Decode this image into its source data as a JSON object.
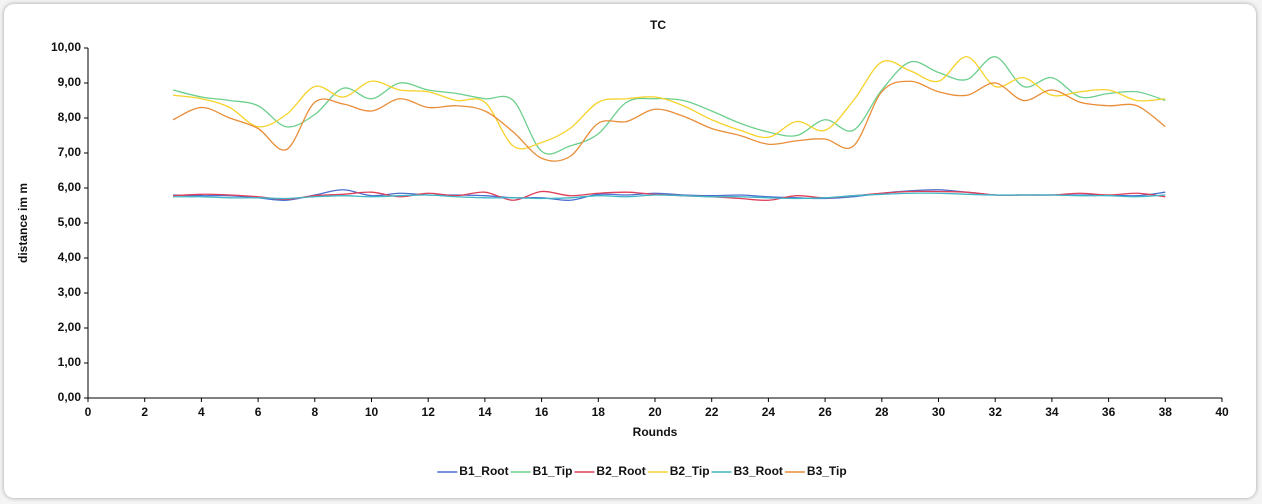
{
  "chart_data": {
    "type": "line",
    "title": "TC",
    "x_label": "Rounds",
    "y_label": "distance im m",
    "x": [
      3,
      4,
      5,
      6,
      7,
      8,
      9,
      10,
      11,
      12,
      13,
      14,
      15,
      16,
      17,
      18,
      19,
      20,
      21,
      22,
      23,
      24,
      25,
      26,
      27,
      28,
      29,
      30,
      31,
      32,
      33,
      34,
      35,
      36,
      37,
      38
    ],
    "series": [
      {
        "name": "B1_Root",
        "color": "#4a6fd0",
        "values": [
          5.8,
          5.78,
          5.78,
          5.72,
          5.65,
          5.8,
          5.95,
          5.78,
          5.85,
          5.8,
          5.8,
          5.78,
          5.72,
          5.72,
          5.65,
          5.82,
          5.8,
          5.85,
          5.8,
          5.78,
          5.8,
          5.75,
          5.72,
          5.7,
          5.75,
          5.85,
          5.92,
          5.95,
          5.88,
          5.8,
          5.8,
          5.8,
          5.8,
          5.8,
          5.78,
          5.88
        ]
      },
      {
        "name": "B1_Tip",
        "color": "#6ccf8c",
        "values": [
          8.8,
          8.6,
          8.5,
          8.35,
          7.75,
          8.1,
          8.85,
          8.55,
          9.0,
          8.8,
          8.7,
          8.55,
          8.5,
          7.05,
          7.2,
          7.55,
          8.45,
          8.55,
          8.5,
          8.2,
          7.85,
          7.6,
          7.5,
          7.95,
          7.65,
          8.8,
          9.6,
          9.3,
          9.1,
          9.75,
          8.9,
          9.15,
          8.6,
          8.7,
          8.75,
          8.5
        ]
      },
      {
        "name": "B2_Root",
        "color": "#e0405a",
        "values": [
          5.78,
          5.82,
          5.8,
          5.75,
          5.68,
          5.78,
          5.82,
          5.88,
          5.75,
          5.85,
          5.78,
          5.88,
          5.65,
          5.9,
          5.78,
          5.85,
          5.88,
          5.82,
          5.78,
          5.75,
          5.7,
          5.65,
          5.78,
          5.72,
          5.78,
          5.85,
          5.9,
          5.9,
          5.88,
          5.8,
          5.8,
          5.8,
          5.85,
          5.8,
          5.85,
          5.75
        ]
      },
      {
        "name": "B2_Tip",
        "color": "#f6d22a",
        "values": [
          8.65,
          8.55,
          8.3,
          7.75,
          8.1,
          8.9,
          8.6,
          9.05,
          8.8,
          8.75,
          8.5,
          8.45,
          7.2,
          7.3,
          7.7,
          8.45,
          8.55,
          8.6,
          8.35,
          7.95,
          7.65,
          7.45,
          7.9,
          7.65,
          8.5,
          9.6,
          9.35,
          9.05,
          9.75,
          8.9,
          9.15,
          8.65,
          8.75,
          8.8,
          8.5,
          8.55
        ]
      },
      {
        "name": "B3_Root",
        "color": "#3fb6c6",
        "values": [
          5.75,
          5.75,
          5.72,
          5.72,
          5.7,
          5.75,
          5.78,
          5.75,
          5.78,
          5.8,
          5.75,
          5.72,
          5.72,
          5.7,
          5.72,
          5.78,
          5.75,
          5.8,
          5.78,
          5.75,
          5.75,
          5.72,
          5.7,
          5.72,
          5.78,
          5.82,
          5.85,
          5.85,
          5.82,
          5.8,
          5.8,
          5.8,
          5.78,
          5.78,
          5.75,
          5.8
        ]
      },
      {
        "name": "B3_Tip",
        "color": "#e98d38",
        "values": [
          7.95,
          8.3,
          8.0,
          7.7,
          7.1,
          8.45,
          8.4,
          8.2,
          8.55,
          8.3,
          8.35,
          8.2,
          7.6,
          6.85,
          6.9,
          7.85,
          7.9,
          8.25,
          8.05,
          7.7,
          7.5,
          7.25,
          7.35,
          7.4,
          7.2,
          8.75,
          9.05,
          8.75,
          8.65,
          9.0,
          8.5,
          8.8,
          8.45,
          8.35,
          8.35,
          7.75
        ]
      }
    ],
    "xlim": [
      0,
      40
    ],
    "xticks": [
      0,
      2,
      4,
      6,
      8,
      10,
      12,
      14,
      16,
      18,
      20,
      22,
      24,
      26,
      28,
      30,
      32,
      34,
      36,
      38,
      40
    ],
    "ylim": [
      0,
      10
    ],
    "yticks": [
      {
        "value": 0,
        "label": "0,00"
      },
      {
        "value": 1,
        "label": "1,00"
      },
      {
        "value": 2,
        "label": "2,00"
      },
      {
        "value": 3,
        "label": "3,00"
      },
      {
        "value": 4,
        "label": "4,00"
      },
      {
        "value": 5,
        "label": "5,00"
      },
      {
        "value": 6,
        "label": "6,00"
      },
      {
        "value": 7,
        "label": "7,00"
      },
      {
        "value": 8,
        "label": "8,00"
      },
      {
        "value": 9,
        "label": "9,00"
      },
      {
        "value": 10,
        "label": "10,00"
      }
    ],
    "grid": false,
    "legend": "bottom"
  }
}
